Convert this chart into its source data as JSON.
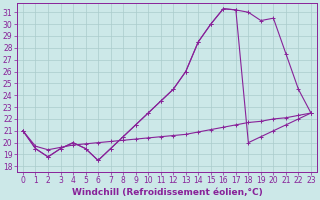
{
  "xlabel": "Windchill (Refroidissement éolien,°C)",
  "bg_color": "#cce8e8",
  "grid_color": "#aacccc",
  "line_color": "#882299",
  "xlim": [
    -0.5,
    23.5
  ],
  "ylim": [
    17.5,
    31.8
  ],
  "yticks": [
    18,
    19,
    20,
    21,
    22,
    23,
    24,
    25,
    26,
    27,
    28,
    29,
    30,
    31
  ],
  "xticks": [
    0,
    1,
    2,
    3,
    4,
    5,
    6,
    7,
    8,
    9,
    10,
    11,
    12,
    13,
    14,
    15,
    16,
    17,
    18,
    19,
    20,
    21,
    22,
    23
  ],
  "line1_x": [
    0,
    1,
    2,
    3,
    4,
    5,
    6,
    7,
    8,
    9,
    10,
    11,
    12,
    13,
    14,
    15,
    16,
    17,
    18,
    19,
    20,
    21,
    22,
    23
  ],
  "line1_y": [
    21.0,
    19.5,
    18.8,
    19.5,
    20.0,
    19.5,
    18.5,
    19.5,
    20.5,
    21.5,
    22.5,
    23.5,
    24.5,
    26.0,
    28.5,
    30.0,
    31.3,
    31.2,
    31.0,
    30.3,
    30.5,
    27.5,
    24.5,
    22.5
  ],
  "line2_x": [
    0,
    1,
    2,
    3,
    4,
    5,
    6,
    7,
    8,
    9,
    10,
    11,
    12,
    13,
    14,
    15,
    16,
    17,
    18,
    19,
    20,
    21,
    22,
    23
  ],
  "line2_y": [
    21.0,
    19.5,
    18.8,
    19.5,
    20.0,
    19.5,
    18.5,
    19.5,
    20.5,
    21.5,
    22.5,
    23.5,
    24.5,
    26.0,
    28.5,
    30.0,
    31.3,
    31.2,
    20.0,
    20.5,
    21.0,
    21.5,
    22.0,
    22.5
  ],
  "line3_x": [
    0,
    1,
    2,
    3,
    4,
    5,
    6,
    7,
    8,
    9,
    10,
    11,
    12,
    13,
    14,
    15,
    16,
    17,
    18,
    19,
    20,
    21,
    22,
    23
  ],
  "line3_y": [
    21.0,
    19.7,
    19.4,
    19.6,
    19.8,
    19.9,
    20.0,
    20.1,
    20.2,
    20.3,
    20.4,
    20.5,
    20.6,
    20.7,
    20.9,
    21.1,
    21.3,
    21.5,
    21.7,
    21.8,
    22.0,
    22.1,
    22.3,
    22.5
  ],
  "xlabel_fontsize": 6.5,
  "tick_fontsize": 5.5
}
